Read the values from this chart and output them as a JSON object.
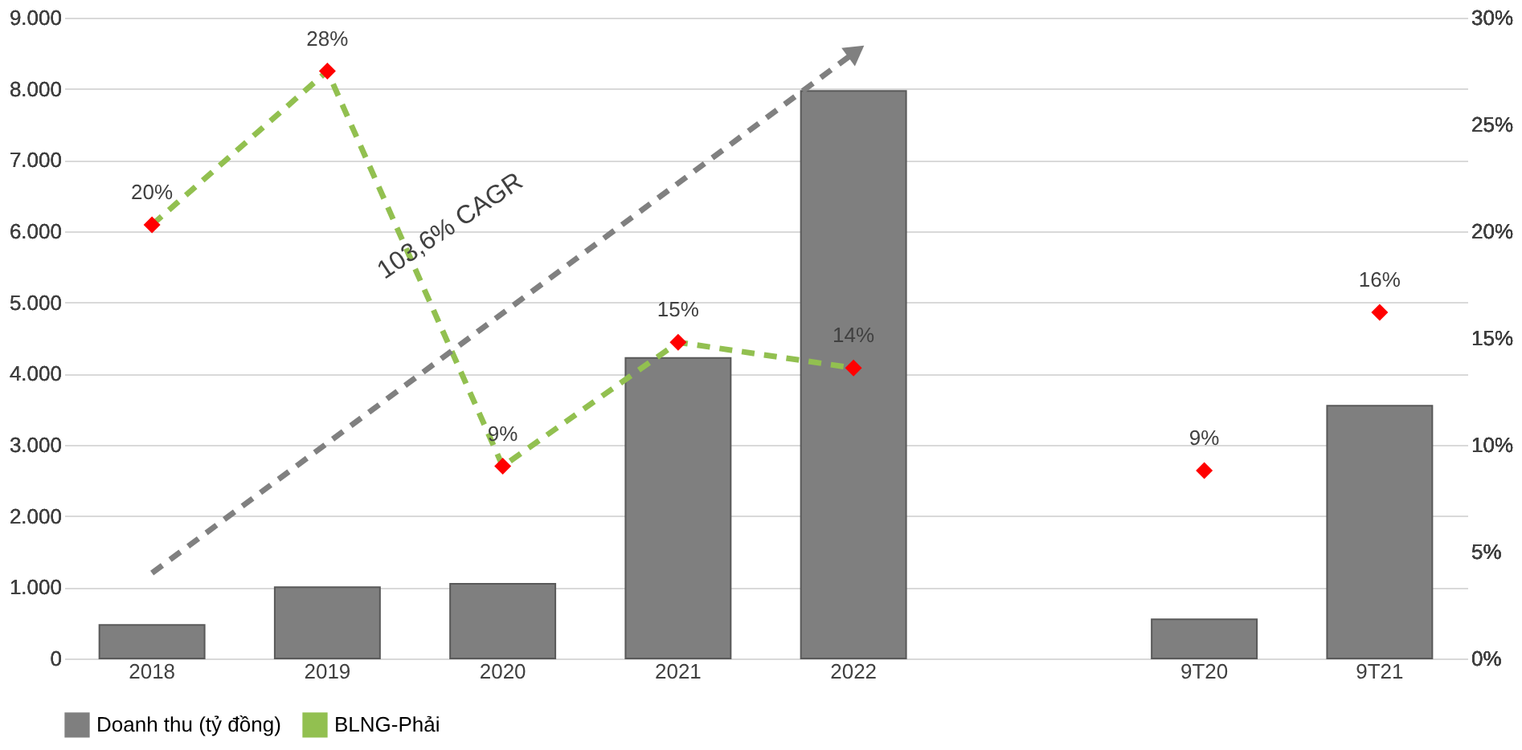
{
  "chart_data": {
    "type": "bar",
    "categories": [
      "2018",
      "2019",
      "2020",
      "2021",
      "2022",
      null,
      "9T20",
      "9T21"
    ],
    "series": [
      {
        "name": "Doanh thu (tỷ đồng)",
        "color": "#7f7f7f",
        "values": [
          470,
          1000,
          1050,
          4220,
          7970,
          null,
          550,
          3550
        ]
      },
      {
        "name": "BLNG-Phải",
        "type": "line",
        "axis": "y2",
        "color": "#92c050",
        "colors": [
          "#ff0000",
          "#ff0000",
          "#ff0000",
          "#ff0000",
          "#ff0000",
          null,
          null,
          null
        ],
        "values": [
          20.3,
          27.5,
          9.0,
          14.8,
          13.6,
          null,
          null,
          null
        ],
        "value_labels": [
          "20%",
          "28%",
          "9%",
          "15%",
          "14%",
          null,
          null,
          null
        ],
        "marker": "diamond",
        "line_style": "dashed"
      },
      {
        "type": "scatter",
        "axis": "y2",
        "color": "#ff0000",
        "values": [
          null,
          null,
          null,
          null,
          null,
          null,
          8.8,
          16.2
        ],
        "value_labels": [
          null,
          null,
          null,
          null,
          null,
          null,
          "9%",
          "16%"
        ],
        "marker": "diamond"
      },
      {
        "type": "line",
        "values": [
          1200,
          null,
          null,
          null,
          8500,
          null,
          null,
          null
        ],
        "color": "#808080",
        "line_style": "dashed",
        "marker": "triangle"
      }
    ],
    "ylim": [
      0,
      9000
    ],
    "yticks": [
      {
        "value": 0,
        "label": "0"
      },
      {
        "value": 1000,
        "label": "1.000"
      },
      {
        "value": 2000,
        "label": "2.000"
      },
      {
        "value": 3000,
        "label": "3.000"
      },
      {
        "value": 4000,
        "label": "4.000"
      },
      {
        "value": 5000,
        "label": "5.000"
      },
      {
        "value": 6000,
        "label": "6.000"
      },
      {
        "value": 7000,
        "label": "7.000"
      },
      {
        "value": 8000,
        "label": "8.000"
      },
      {
        "value": 9000,
        "label": "9.000"
      }
    ],
    "y2lim": [
      0,
      30
    ],
    "y2ticks": [
      {
        "value": 0,
        "label": "0%"
      },
      {
        "value": 5,
        "label": "5%"
      },
      {
        "value": 10,
        "label": "10%"
      },
      {
        "value": 15,
        "label": "15%"
      },
      {
        "value": 20,
        "label": "20%"
      },
      {
        "value": 25,
        "label": "25%"
      },
      {
        "value": 30,
        "label": "30%"
      }
    ],
    "annotations": [
      "103,6% CAGR"
    ],
    "grid": "y",
    "legend": "bottom"
  }
}
